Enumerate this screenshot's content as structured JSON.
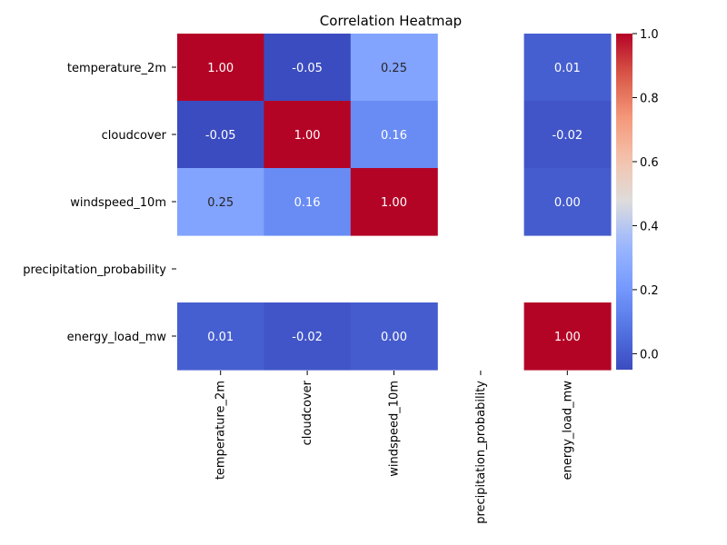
{
  "chart_data": {
    "type": "heatmap",
    "title": "Correlation Heatmap",
    "xlabel": "",
    "ylabel": "",
    "labels": [
      "temperature_2m",
      "cloudcover",
      "windspeed_10m",
      "precipitation_probability",
      "energy_load_mw"
    ],
    "matrix": [
      [
        1.0,
        -0.05,
        0.25,
        null,
        0.01
      ],
      [
        -0.05,
        1.0,
        0.16,
        null,
        -0.02
      ],
      [
        0.25,
        0.16,
        1.0,
        null,
        0.0
      ],
      [
        null,
        null,
        null,
        null,
        null
      ],
      [
        0.01,
        -0.02,
        0.0,
        null,
        1.0
      ]
    ],
    "value_format": "2 decimals",
    "colormap": "coolwarm",
    "color_range": [
      -0.05,
      1.0
    ],
    "colorbar": {
      "ticks": [
        "0.0",
        "0.2",
        "0.4",
        "0.6",
        "0.8",
        "1.0"
      ],
      "tick_values": [
        0.0,
        0.2,
        0.4,
        0.6,
        0.8,
        1.0
      ],
      "placement": "right"
    },
    "missing_cells": "blank"
  }
}
